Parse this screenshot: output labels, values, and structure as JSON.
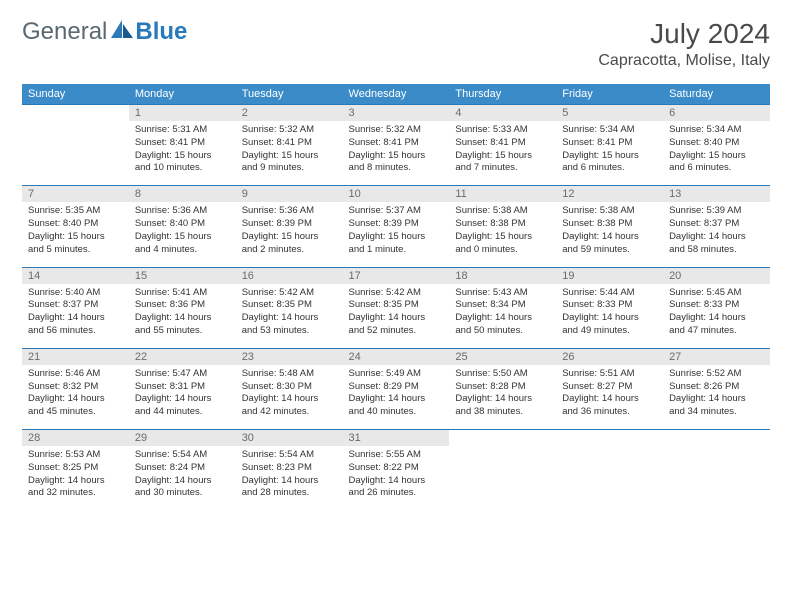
{
  "brand": {
    "part1": "General",
    "part2": "Blue"
  },
  "title": "July 2024",
  "location": "Capracotta, Molise, Italy",
  "colors": {
    "header_bg": "#3b8bc9",
    "header_text": "#ffffff",
    "num_row_bg": "#e8e8e8",
    "row_border": "#2a7ab9",
    "text": "#333333",
    "muted": "#6b6b6b"
  },
  "days_of_week": [
    "Sunday",
    "Monday",
    "Tuesday",
    "Wednesday",
    "Thursday",
    "Friday",
    "Saturday"
  ],
  "weeks": [
    [
      null,
      {
        "n": "1",
        "sr": "Sunrise: 5:31 AM",
        "ss": "Sunset: 8:41 PM",
        "dl": "Daylight: 15 hours and 10 minutes."
      },
      {
        "n": "2",
        "sr": "Sunrise: 5:32 AM",
        "ss": "Sunset: 8:41 PM",
        "dl": "Daylight: 15 hours and 9 minutes."
      },
      {
        "n": "3",
        "sr": "Sunrise: 5:32 AM",
        "ss": "Sunset: 8:41 PM",
        "dl": "Daylight: 15 hours and 8 minutes."
      },
      {
        "n": "4",
        "sr": "Sunrise: 5:33 AM",
        "ss": "Sunset: 8:41 PM",
        "dl": "Daylight: 15 hours and 7 minutes."
      },
      {
        "n": "5",
        "sr": "Sunrise: 5:34 AM",
        "ss": "Sunset: 8:41 PM",
        "dl": "Daylight: 15 hours and 6 minutes."
      },
      {
        "n": "6",
        "sr": "Sunrise: 5:34 AM",
        "ss": "Sunset: 8:40 PM",
        "dl": "Daylight: 15 hours and 6 minutes."
      }
    ],
    [
      {
        "n": "7",
        "sr": "Sunrise: 5:35 AM",
        "ss": "Sunset: 8:40 PM",
        "dl": "Daylight: 15 hours and 5 minutes."
      },
      {
        "n": "8",
        "sr": "Sunrise: 5:36 AM",
        "ss": "Sunset: 8:40 PM",
        "dl": "Daylight: 15 hours and 4 minutes."
      },
      {
        "n": "9",
        "sr": "Sunrise: 5:36 AM",
        "ss": "Sunset: 8:39 PM",
        "dl": "Daylight: 15 hours and 2 minutes."
      },
      {
        "n": "10",
        "sr": "Sunrise: 5:37 AM",
        "ss": "Sunset: 8:39 PM",
        "dl": "Daylight: 15 hours and 1 minute."
      },
      {
        "n": "11",
        "sr": "Sunrise: 5:38 AM",
        "ss": "Sunset: 8:38 PM",
        "dl": "Daylight: 15 hours and 0 minutes."
      },
      {
        "n": "12",
        "sr": "Sunrise: 5:38 AM",
        "ss": "Sunset: 8:38 PM",
        "dl": "Daylight: 14 hours and 59 minutes."
      },
      {
        "n": "13",
        "sr": "Sunrise: 5:39 AM",
        "ss": "Sunset: 8:37 PM",
        "dl": "Daylight: 14 hours and 58 minutes."
      }
    ],
    [
      {
        "n": "14",
        "sr": "Sunrise: 5:40 AM",
        "ss": "Sunset: 8:37 PM",
        "dl": "Daylight: 14 hours and 56 minutes."
      },
      {
        "n": "15",
        "sr": "Sunrise: 5:41 AM",
        "ss": "Sunset: 8:36 PM",
        "dl": "Daylight: 14 hours and 55 minutes."
      },
      {
        "n": "16",
        "sr": "Sunrise: 5:42 AM",
        "ss": "Sunset: 8:35 PM",
        "dl": "Daylight: 14 hours and 53 minutes."
      },
      {
        "n": "17",
        "sr": "Sunrise: 5:42 AM",
        "ss": "Sunset: 8:35 PM",
        "dl": "Daylight: 14 hours and 52 minutes."
      },
      {
        "n": "18",
        "sr": "Sunrise: 5:43 AM",
        "ss": "Sunset: 8:34 PM",
        "dl": "Daylight: 14 hours and 50 minutes."
      },
      {
        "n": "19",
        "sr": "Sunrise: 5:44 AM",
        "ss": "Sunset: 8:33 PM",
        "dl": "Daylight: 14 hours and 49 minutes."
      },
      {
        "n": "20",
        "sr": "Sunrise: 5:45 AM",
        "ss": "Sunset: 8:33 PM",
        "dl": "Daylight: 14 hours and 47 minutes."
      }
    ],
    [
      {
        "n": "21",
        "sr": "Sunrise: 5:46 AM",
        "ss": "Sunset: 8:32 PM",
        "dl": "Daylight: 14 hours and 45 minutes."
      },
      {
        "n": "22",
        "sr": "Sunrise: 5:47 AM",
        "ss": "Sunset: 8:31 PM",
        "dl": "Daylight: 14 hours and 44 minutes."
      },
      {
        "n": "23",
        "sr": "Sunrise: 5:48 AM",
        "ss": "Sunset: 8:30 PM",
        "dl": "Daylight: 14 hours and 42 minutes."
      },
      {
        "n": "24",
        "sr": "Sunrise: 5:49 AM",
        "ss": "Sunset: 8:29 PM",
        "dl": "Daylight: 14 hours and 40 minutes."
      },
      {
        "n": "25",
        "sr": "Sunrise: 5:50 AM",
        "ss": "Sunset: 8:28 PM",
        "dl": "Daylight: 14 hours and 38 minutes."
      },
      {
        "n": "26",
        "sr": "Sunrise: 5:51 AM",
        "ss": "Sunset: 8:27 PM",
        "dl": "Daylight: 14 hours and 36 minutes."
      },
      {
        "n": "27",
        "sr": "Sunrise: 5:52 AM",
        "ss": "Sunset: 8:26 PM",
        "dl": "Daylight: 14 hours and 34 minutes."
      }
    ],
    [
      {
        "n": "28",
        "sr": "Sunrise: 5:53 AM",
        "ss": "Sunset: 8:25 PM",
        "dl": "Daylight: 14 hours and 32 minutes."
      },
      {
        "n": "29",
        "sr": "Sunrise: 5:54 AM",
        "ss": "Sunset: 8:24 PM",
        "dl": "Daylight: 14 hours and 30 minutes."
      },
      {
        "n": "30",
        "sr": "Sunrise: 5:54 AM",
        "ss": "Sunset: 8:23 PM",
        "dl": "Daylight: 14 hours and 28 minutes."
      },
      {
        "n": "31",
        "sr": "Sunrise: 5:55 AM",
        "ss": "Sunset: 8:22 PM",
        "dl": "Daylight: 14 hours and 26 minutes."
      },
      null,
      null,
      null
    ]
  ]
}
